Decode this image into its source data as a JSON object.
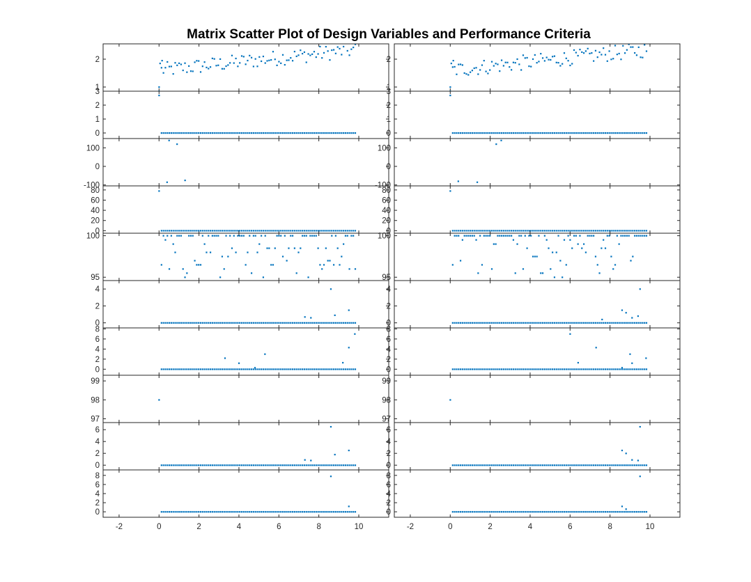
{
  "chart_data": {
    "type": "scatter",
    "title": "Matrix Scatter Plot of Design Variables and Performance Criteria",
    "marker_color": "#0072BD",
    "xlim": [
      -2.8,
      11.5
    ],
    "xticks": [
      -2,
      0,
      2,
      4,
      6,
      8,
      10
    ],
    "xtick_labels": [
      "-2",
      "0",
      "2",
      "4",
      "6",
      "8",
      "10"
    ],
    "columns": 2,
    "rows": [
      {
        "ylim": [
          0.85,
          2.55
        ],
        "yticks": [
          1,
          2
        ],
        "ytick_labels": [
          "1",
          "2"
        ],
        "pattern": "rising",
        "baseline": 2.0,
        "outliers": [
          [
            0,
            1.0
          ],
          [
            0,
            0.85
          ],
          [
            0.05,
            1.85
          ],
          [
            0.15,
            1.95
          ]
        ]
      },
      {
        "ylim": [
          -0.4,
          3.0
        ],
        "yticks": [
          0,
          1,
          2,
          3
        ],
        "ytick_labels": [
          "0",
          "1",
          "2",
          "3"
        ],
        "pattern": "flat",
        "baseline": 0,
        "outliers": [
          [
            0,
            2.7
          ]
        ]
      },
      {
        "ylim": [
          -105,
          150
        ],
        "yticks": [
          -100,
          0,
          100
        ],
        "ytick_labels": [
          "-100",
          "0",
          "100"
        ],
        "pattern": "none",
        "baseline": 0,
        "outliers_by_column": [
          [
            [
              0.4,
              -85
            ],
            [
              1.3,
              -75
            ],
            [
              0.5,
              140
            ],
            [
              0.9,
              120
            ]
          ],
          [
            [
              0.4,
              -80
            ],
            [
              1.35,
              -85
            ],
            [
              2.3,
              120
            ],
            [
              2.55,
              140
            ]
          ]
        ]
      },
      {
        "ylim": [
          -5,
          88
        ],
        "yticks": [
          0,
          20,
          40,
          60,
          80
        ],
        "ytick_labels": [
          "0",
          "20",
          "40",
          "60",
          "80"
        ],
        "pattern": "flat",
        "baseline": 0,
        "outliers": [
          [
            0,
            78
          ]
        ]
      },
      {
        "ylim": [
          94.6,
          100.3
        ],
        "yticks": [
          95,
          100
        ],
        "ytick_labels": [
          "95",
          "100"
        ],
        "pattern": "upper-band",
        "baseline": 100,
        "outliers": []
      },
      {
        "ylim": [
          -0.6,
          5.0
        ],
        "yticks": [
          0,
          2,
          4
        ],
        "ytick_labels": [
          "0",
          "2",
          "4"
        ],
        "pattern": "flat",
        "baseline": 0,
        "outliers_by_column": [
          [
            [
              8.6,
              4.0
            ],
            [
              9.5,
              1.5
            ],
            [
              7.3,
              0.7
            ],
            [
              7.6,
              0.6
            ],
            [
              8.8,
              0.9
            ]
          ],
          [
            [
              9.5,
              4.0
            ],
            [
              8.6,
              1.5
            ],
            [
              8.8,
              1.2
            ],
            [
              9.1,
              0.6
            ],
            [
              9.4,
              0.8
            ],
            [
              7.6,
              0.4
            ]
          ]
        ]
      },
      {
        "ylim": [
          -1.2,
          8.2
        ],
        "yticks": [
          0,
          2,
          4,
          6,
          8
        ],
        "ytick_labels": [
          "0",
          "2",
          "4",
          "6",
          "8"
        ],
        "pattern": "flat",
        "baseline": 0,
        "outliers_by_column": [
          [
            [
              9.8,
              7.0
            ],
            [
              9.5,
              4.3
            ],
            [
              5.3,
              3.0
            ],
            [
              3.3,
              2.2
            ],
            [
              4.0,
              1.2
            ],
            [
              9.2,
              1.3
            ],
            [
              4.8,
              0.3
            ]
          ],
          [
            [
              6.0,
              7.0
            ],
            [
              7.3,
              4.3
            ],
            [
              9.0,
              3.0
            ],
            [
              9.8,
              2.2
            ],
            [
              6.4,
              1.3
            ],
            [
              9.1,
              1.2
            ],
            [
              8.6,
              0.3
            ]
          ]
        ]
      },
      {
        "ylim": [
          96.8,
          99.3
        ],
        "yticks": [
          97,
          98,
          99
        ],
        "ytick_labels": [
          "97",
          "98",
          "99"
        ],
        "pattern": "none",
        "baseline": 98,
        "outliers": [
          [
            0,
            98
          ]
        ]
      },
      {
        "ylim": [
          -0.8,
          7.2
        ],
        "yticks": [
          0,
          2,
          4,
          6
        ],
        "ytick_labels": [
          "0",
          "2",
          "4",
          "6"
        ],
        "pattern": "flat",
        "baseline": 0,
        "outliers_by_column": [
          [
            [
              8.6,
              6.5
            ],
            [
              9.5,
              2.5
            ],
            [
              8.8,
              1.8
            ],
            [
              7.3,
              0.9
            ],
            [
              7.6,
              0.8
            ]
          ],
          [
            [
              9.5,
              6.5
            ],
            [
              8.6,
              2.5
            ],
            [
              8.8,
              2.0
            ],
            [
              9.1,
              0.9
            ],
            [
              9.4,
              0.8
            ]
          ]
        ]
      },
      {
        "ylim": [
          -1.2,
          9.2
        ],
        "yticks": [
          0,
          2,
          4,
          6,
          8
        ],
        "ytick_labels": [
          "0",
          "2",
          "4",
          "6",
          "8"
        ],
        "pattern": "flat",
        "baseline": 0,
        "outliers_by_column": [
          [
            [
              8.6,
              7.8
            ],
            [
              9.5,
              1.2
            ]
          ],
          [
            [
              9.5,
              7.8
            ],
            [
              8.6,
              1.2
            ],
            [
              8.8,
              0.6
            ]
          ]
        ]
      }
    ]
  }
}
